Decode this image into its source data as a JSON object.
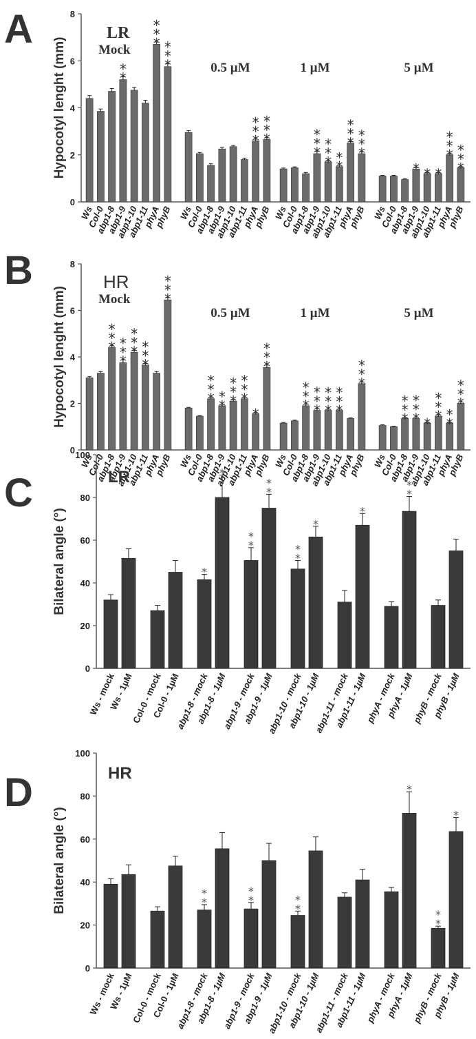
{
  "panels": [
    "A",
    "B",
    "C",
    "D"
  ],
  "chart_data": [
    {
      "type": "bar",
      "panel": "A",
      "condition": "LR",
      "ylabel": "Hypocotyl lenght (mm)",
      "ylim": [
        0,
        8
      ],
      "yticks": [
        0,
        2,
        4,
        6,
        8
      ],
      "categories": [
        "Ws",
        "Col-0",
        "abp1-8",
        "abp1-9",
        "abp1-10",
        "abp1-11",
        "phyA",
        "phyB"
      ],
      "groups": [
        {
          "label": "Mock",
          "values": [
            4.4,
            3.85,
            4.7,
            5.2,
            4.75,
            4.2,
            6.7,
            5.75
          ],
          "errors": [
            0.12,
            0.1,
            0.12,
            0.12,
            0.12,
            0.12,
            0.1,
            0.12
          ],
          "stars": [
            "",
            "",
            "",
            "**",
            "",
            "",
            "***",
            "***"
          ]
        },
        {
          "label": "0.5 µM",
          "values": [
            2.95,
            2.05,
            1.55,
            2.25,
            2.35,
            1.8,
            2.6,
            2.65
          ],
          "errors": [
            0.08,
            0.05,
            0.07,
            0.07,
            0.05,
            0.06,
            0.07,
            0.08
          ],
          "stars": [
            "",
            "",
            "",
            "",
            "",
            "",
            "***",
            "***"
          ]
        },
        {
          "label": "1 µM",
          "values": [
            1.4,
            1.45,
            1.2,
            2.05,
            1.7,
            1.5,
            2.5,
            2.05
          ],
          "errors": [
            0.04,
            0.04,
            0.05,
            0.1,
            0.05,
            0.06,
            0.06,
            0.07
          ],
          "stars": [
            "",
            "",
            "",
            "***",
            "***",
            "**",
            "***",
            "***"
          ]
        },
        {
          "label": "5 µM",
          "values": [
            1.1,
            1.1,
            0.95,
            1.4,
            1.2,
            1.2,
            2.0,
            1.45
          ],
          "errors": [
            0.03,
            0.03,
            0.03,
            0.06,
            0.04,
            0.04,
            0.05,
            0.04
          ],
          "stars": [
            "",
            "",
            "",
            "*",
            "*",
            "*",
            "***",
            "***"
          ]
        }
      ]
    },
    {
      "type": "bar",
      "panel": "B",
      "condition": "HR",
      "ylabel": "Hypocotyl lenght (mm)",
      "ylim": [
        0,
        8
      ],
      "yticks": [
        0,
        2,
        4,
        6,
        8
      ],
      "categories": [
        "Ws",
        "Col-0",
        "abp1-8",
        "abp1-9",
        "abp1-10",
        "abp1-11",
        "phyA",
        "phyB"
      ],
      "groups": [
        {
          "label": "Mock",
          "values": [
            3.1,
            3.3,
            4.4,
            3.75,
            4.2,
            3.65,
            3.3,
            6.45
          ],
          "errors": [
            0.05,
            0.07,
            0.08,
            0.12,
            0.08,
            0.07,
            0.07,
            0.1
          ],
          "stars": [
            "",
            "",
            "***",
            "***",
            "***",
            "***",
            "",
            "***"
          ]
        },
        {
          "label": "0.5 µM",
          "values": [
            1.8,
            1.45,
            2.2,
            1.9,
            2.1,
            2.2,
            1.55,
            3.55
          ],
          "errors": [
            0.03,
            0.03,
            0.06,
            0.06,
            0.07,
            0.06,
            0.05,
            0.1
          ],
          "stars": [
            "",
            "",
            "***",
            "**",
            "***",
            "***",
            "*",
            "***"
          ]
        },
        {
          "label": "1 µM",
          "values": [
            1.15,
            1.25,
            1.9,
            1.7,
            1.7,
            1.7,
            1.35,
            2.85
          ],
          "errors": [
            0.03,
            0.03,
            0.07,
            0.07,
            0.05,
            0.05,
            0.03,
            0.07
          ],
          "stars": [
            "",
            "",
            "***",
            "***",
            "***",
            "***",
            "",
            "***"
          ]
        },
        {
          "label": "5 µM",
          "values": [
            1.05,
            1.0,
            1.35,
            1.35,
            1.15,
            1.45,
            1.15,
            2.0
          ],
          "errors": [
            0.03,
            0.02,
            0.05,
            0.06,
            0.03,
            0.06,
            0.03,
            0.06
          ],
          "stars": [
            "",
            "",
            "***",
            "***",
            "*",
            "***",
            "**",
            "***"
          ]
        }
      ]
    },
    {
      "type": "bar",
      "panel": "C",
      "condition": "LR",
      "ylabel": "Bilateral angle (°)",
      "ylim": [
        0,
        100
      ],
      "yticks": [
        0,
        20,
        40,
        60,
        80,
        100
      ],
      "categories": [
        "Ws - mock",
        "Ws - 1µM",
        "Col-0 - mock",
        "Col-0 - 1µM",
        "abp1-8 - mock",
        "abp1-8 - 1µM",
        "abp1-9 - mock",
        "abp1-9 - 1µM",
        "abp1-10 - mock",
        "abp1-10 - 1µM",
        "abp1-11 - mock",
        "abp1-11 - 1µM",
        "phyA - mock",
        "phyA - 1µM",
        "phyB - mock",
        "phyB - 1µM"
      ],
      "values": [
        32,
        51.5,
        27,
        45,
        41.5,
        80,
        50.5,
        75,
        46.5,
        61.5,
        31,
        67,
        29,
        73.5,
        29.5,
        55
      ],
      "errors": [
        2.5,
        4.5,
        2.5,
        5.5,
        2.5,
        10.5,
        6,
        6.5,
        4,
        5,
        5.5,
        5.5,
        2.2,
        7,
        2.5,
        5.5
      ],
      "stars": [
        "",
        "",
        "",
        "",
        "*",
        "*",
        "**",
        "**",
        "**",
        "*",
        "",
        "*",
        "",
        "**",
        "",
        ""
      ]
    },
    {
      "type": "bar",
      "panel": "D",
      "condition": "HR",
      "ylabel": "Bilateral angle (°)",
      "ylim": [
        0,
        100
      ],
      "yticks": [
        0,
        20,
        40,
        60,
        80,
        100
      ],
      "categories": [
        "Ws - mock",
        "Ws - 1µM",
        "Col-0 - mock",
        "Col-0 - 1µM",
        "abp1-8 - mock",
        "abp1-8 - 1µM",
        "abp1-9 - mock",
        "abp1-9 - 1µM",
        "abp1-10 - mock",
        "abp1-10 - 1µM",
        "abp1-11 - mock",
        "abp1-11 - 1µM",
        "phyA - mock",
        "phyA - 1µM",
        "phyB - mock",
        "phyB - 1µM"
      ],
      "values": [
        39,
        43.5,
        26.5,
        47.5,
        27,
        55.5,
        27.5,
        50,
        24.5,
        54.5,
        33,
        41,
        35.5,
        72,
        18.5,
        63.5
      ],
      "errors": [
        2.5,
        4.5,
        2,
        4.5,
        2.5,
        7.5,
        3,
        8,
        2,
        6.5,
        2,
        5,
        2,
        10,
        1,
        6.5
      ],
      "stars": [
        "",
        "",
        "",
        "",
        "**",
        "",
        "**",
        "",
        "**",
        "",
        "",
        "",
        "",
        "*",
        "**",
        "*"
      ]
    }
  ]
}
